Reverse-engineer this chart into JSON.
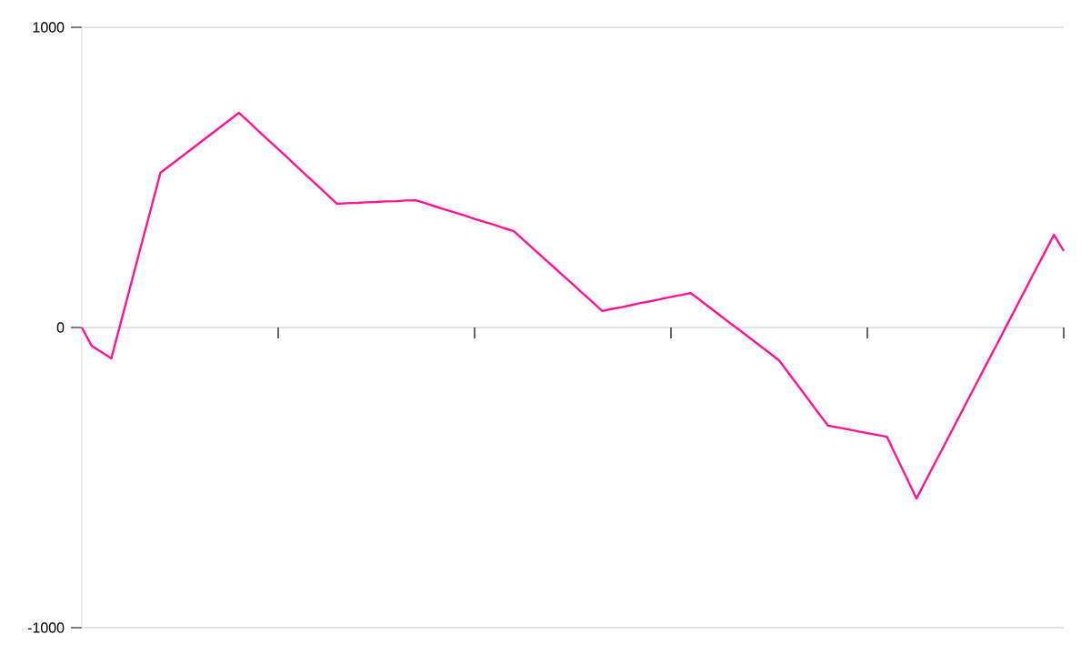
{
  "chart_data": {
    "type": "line",
    "categories": [
      null,
      null,
      null,
      null,
      null,
      null,
      null,
      null,
      null,
      null,
      null,
      null,
      null,
      null,
      null,
      null,
      null,
      null,
      null,
      null,
      null,
      null,
      null,
      null,
      null,
      null,
      null,
      null,
      null,
      null,
      null,
      null,
      null,
      null,
      null,
      null,
      null,
      null,
      null,
      null,
      null,
      null,
      null,
      null,
      null,
      null,
      null,
      null,
      null,
      null,
      null,
      null,
      null,
      null,
      null,
      null,
      null,
      null,
      null,
      null,
      null,
      null,
      null,
      null,
      null,
      null,
      null,
      null,
      null,
      null,
      null,
      null,
      null,
      null,
      null,
      null,
      null,
      null,
      null,
      null,
      null,
      null,
      null,
      null,
      null,
      null,
      null,
      null,
      null,
      null,
      null,
      null,
      null,
      null,
      null,
      null,
      null,
      null,
      null,
      null,
      null
    ],
    "series": [
      {
        "color": "#ff1493",
        "values": [
          0,
          -61,
          -82,
          -103,
          21,
          144,
          268,
          391,
          515,
          540,
          565,
          590,
          615,
          640,
          665,
          690,
          715,
          685,
          654,
          624,
          594,
          564,
          533,
          503,
          473,
          442,
          412,
          414,
          415,
          417,
          418,
          420,
          421,
          423,
          424,
          414,
          403,
          393,
          383,
          373,
          362,
          352,
          342,
          331,
          321,
          291,
          262,
          232,
          203,
          173,
          144,
          114,
          85,
          55,
          62,
          68,
          75,
          82,
          88,
          95,
          102,
          108,
          115,
          90,
          65,
          40,
          15,
          -9,
          -34,
          -59,
          -84,
          -109,
          -153,
          -196,
          -240,
          -284,
          -327,
          -333,
          -339,
          -346,
          -352,
          -358,
          -364,
          -433,
          -501,
          -570,
          -507,
          -444,
          -382,
          -319,
          -256,
          -193,
          -130,
          -68,
          -5,
          58,
          121,
          184,
          246,
          309,
          255
        ]
      }
    ],
    "ylim": [
      -1000,
      1000
    ],
    "yticks": [
      -1000,
      0,
      1000
    ],
    "tick_labels": "y",
    "grid": "y"
  }
}
